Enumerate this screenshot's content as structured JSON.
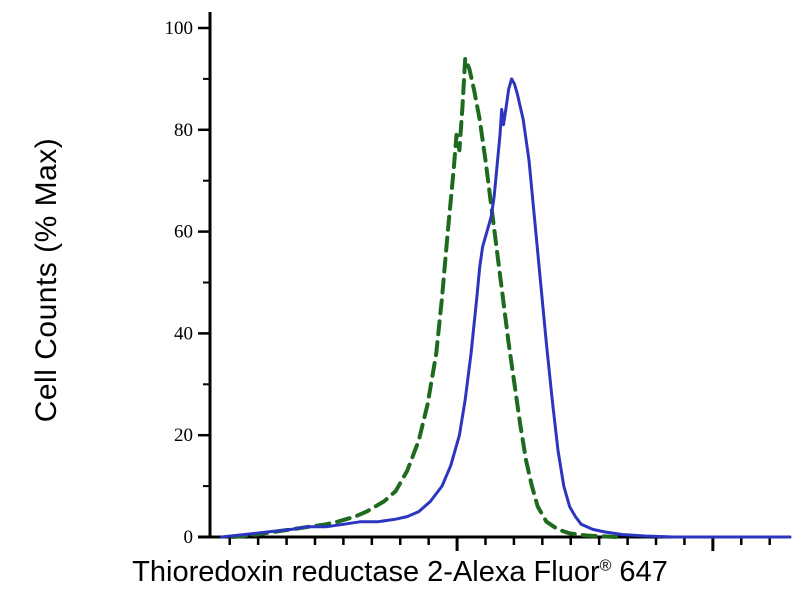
{
  "chart_data": {
    "type": "line",
    "title": "",
    "xlabel": "Thioredoxin reductase 2-Alexa Fluor® 647",
    "xlabel_parts": {
      "main": "Thioredoxin reductase 2-Alexa Fluor",
      "sup": "®",
      "suffix": " 647"
    },
    "ylabel": "Cell Counts (% Max)",
    "ylim": [
      0,
      100
    ],
    "y_major_ticks": [
      0,
      20,
      40,
      60,
      80,
      100
    ],
    "y_minor_ticks": [
      10,
      30,
      50,
      70,
      90
    ],
    "x_axis_scale": "log-style, no numeric labels shown",
    "x_major_ticks": [
      0.426,
      0.867
    ],
    "x_minor_ticks": [
      0.034,
      0.083,
      0.132,
      0.181,
      0.23,
      0.279,
      0.328,
      0.377,
      0.475,
      0.524,
      0.573,
      0.622,
      0.671,
      0.72,
      0.769,
      0.818,
      0.916,
      0.965
    ],
    "grid": false,
    "legend": "none",
    "axis_color": "#000000",
    "background_color": "#ffffff",
    "series": [
      {
        "name": "control-dashed",
        "style": "dashed",
        "color": "#1e6a1e",
        "points": [
          [
            0.04,
            0
          ],
          [
            0.08,
            0.5
          ],
          [
            0.11,
            1
          ],
          [
            0.14,
            1.5
          ],
          [
            0.17,
            2
          ],
          [
            0.2,
            2.5
          ],
          [
            0.22,
            3
          ],
          [
            0.25,
            4
          ],
          [
            0.27,
            5
          ],
          [
            0.3,
            7
          ],
          [
            0.32,
            9
          ],
          [
            0.34,
            13
          ],
          [
            0.36,
            19
          ],
          [
            0.375,
            26
          ],
          [
            0.39,
            36
          ],
          [
            0.4,
            47
          ],
          [
            0.41,
            60
          ],
          [
            0.42,
            72
          ],
          [
            0.425,
            79
          ],
          [
            0.43,
            76
          ],
          [
            0.435,
            84
          ],
          [
            0.44,
            94
          ],
          [
            0.447,
            92
          ],
          [
            0.455,
            88
          ],
          [
            0.465,
            82
          ],
          [
            0.475,
            74
          ],
          [
            0.485,
            65
          ],
          [
            0.495,
            56
          ],
          [
            0.505,
            47
          ],
          [
            0.515,
            38
          ],
          [
            0.525,
            30
          ],
          [
            0.535,
            22
          ],
          [
            0.545,
            15
          ],
          [
            0.555,
            10
          ],
          [
            0.565,
            6
          ],
          [
            0.58,
            3
          ],
          [
            0.6,
            1.5
          ],
          [
            0.62,
            0.7
          ],
          [
            0.65,
            0.3
          ],
          [
            0.7,
            0
          ]
        ]
      },
      {
        "name": "sample-solid",
        "style": "solid",
        "color": "#2b35c0",
        "points": [
          [
            0.02,
            0
          ],
          [
            0.06,
            0.5
          ],
          [
            0.1,
            1
          ],
          [
            0.14,
            1.5
          ],
          [
            0.17,
            2
          ],
          [
            0.2,
            2
          ],
          [
            0.23,
            2.5
          ],
          [
            0.26,
            3
          ],
          [
            0.29,
            3
          ],
          [
            0.32,
            3.5
          ],
          [
            0.34,
            4
          ],
          [
            0.36,
            5
          ],
          [
            0.38,
            7
          ],
          [
            0.4,
            10
          ],
          [
            0.415,
            14
          ],
          [
            0.43,
            20
          ],
          [
            0.44,
            27
          ],
          [
            0.45,
            36
          ],
          [
            0.46,
            47
          ],
          [
            0.465,
            53
          ],
          [
            0.47,
            57
          ],
          [
            0.475,
            59
          ],
          [
            0.48,
            61
          ],
          [
            0.485,
            63
          ],
          [
            0.49,
            67
          ],
          [
            0.495,
            73
          ],
          [
            0.5,
            79
          ],
          [
            0.503,
            84
          ],
          [
            0.506,
            81
          ],
          [
            0.51,
            84
          ],
          [
            0.515,
            88
          ],
          [
            0.52,
            90
          ],
          [
            0.525,
            89
          ],
          [
            0.53,
            87
          ],
          [
            0.54,
            82
          ],
          [
            0.55,
            74
          ],
          [
            0.555,
            68
          ],
          [
            0.56,
            62
          ],
          [
            0.57,
            50
          ],
          [
            0.58,
            38
          ],
          [
            0.59,
            27
          ],
          [
            0.6,
            17
          ],
          [
            0.61,
            10
          ],
          [
            0.62,
            6
          ],
          [
            0.63,
            4
          ],
          [
            0.64,
            2.5
          ],
          [
            0.66,
            1.5
          ],
          [
            0.68,
            1
          ],
          [
            0.71,
            0.5
          ],
          [
            0.75,
            0.2
          ],
          [
            0.8,
            0
          ],
          [
            1.0,
            0
          ]
        ]
      }
    ]
  }
}
